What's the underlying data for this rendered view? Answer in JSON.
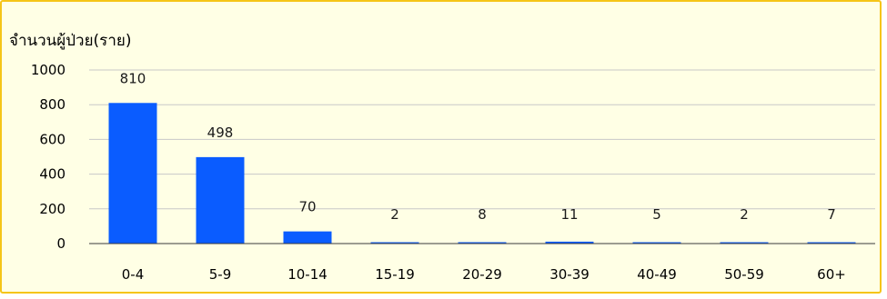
{
  "chart_data": {
    "type": "bar",
    "ylabel": "จำนวนผู้ป่วย(ราย)",
    "xlabel": "",
    "categories": [
      "0-4",
      "5-9",
      "10-14",
      "15-19",
      "20-29",
      "30-39",
      "40-49",
      "50-59",
      "60+"
    ],
    "values": [
      810,
      498,
      70,
      2,
      8,
      11,
      5,
      2,
      7
    ],
    "data_labels": [
      "810",
      "498",
      "70",
      "2",
      "8",
      "11",
      "5",
      "2",
      "7"
    ],
    "ylim": [
      0,
      1000
    ],
    "yticks": [
      0,
      200,
      400,
      600,
      800,
      1000
    ],
    "grid": true,
    "legend": "none",
    "colors": {
      "bar": "#0a5cff",
      "background": "#ffffe5",
      "border": "#f5c518",
      "grid": "#c8c8c8"
    }
  }
}
